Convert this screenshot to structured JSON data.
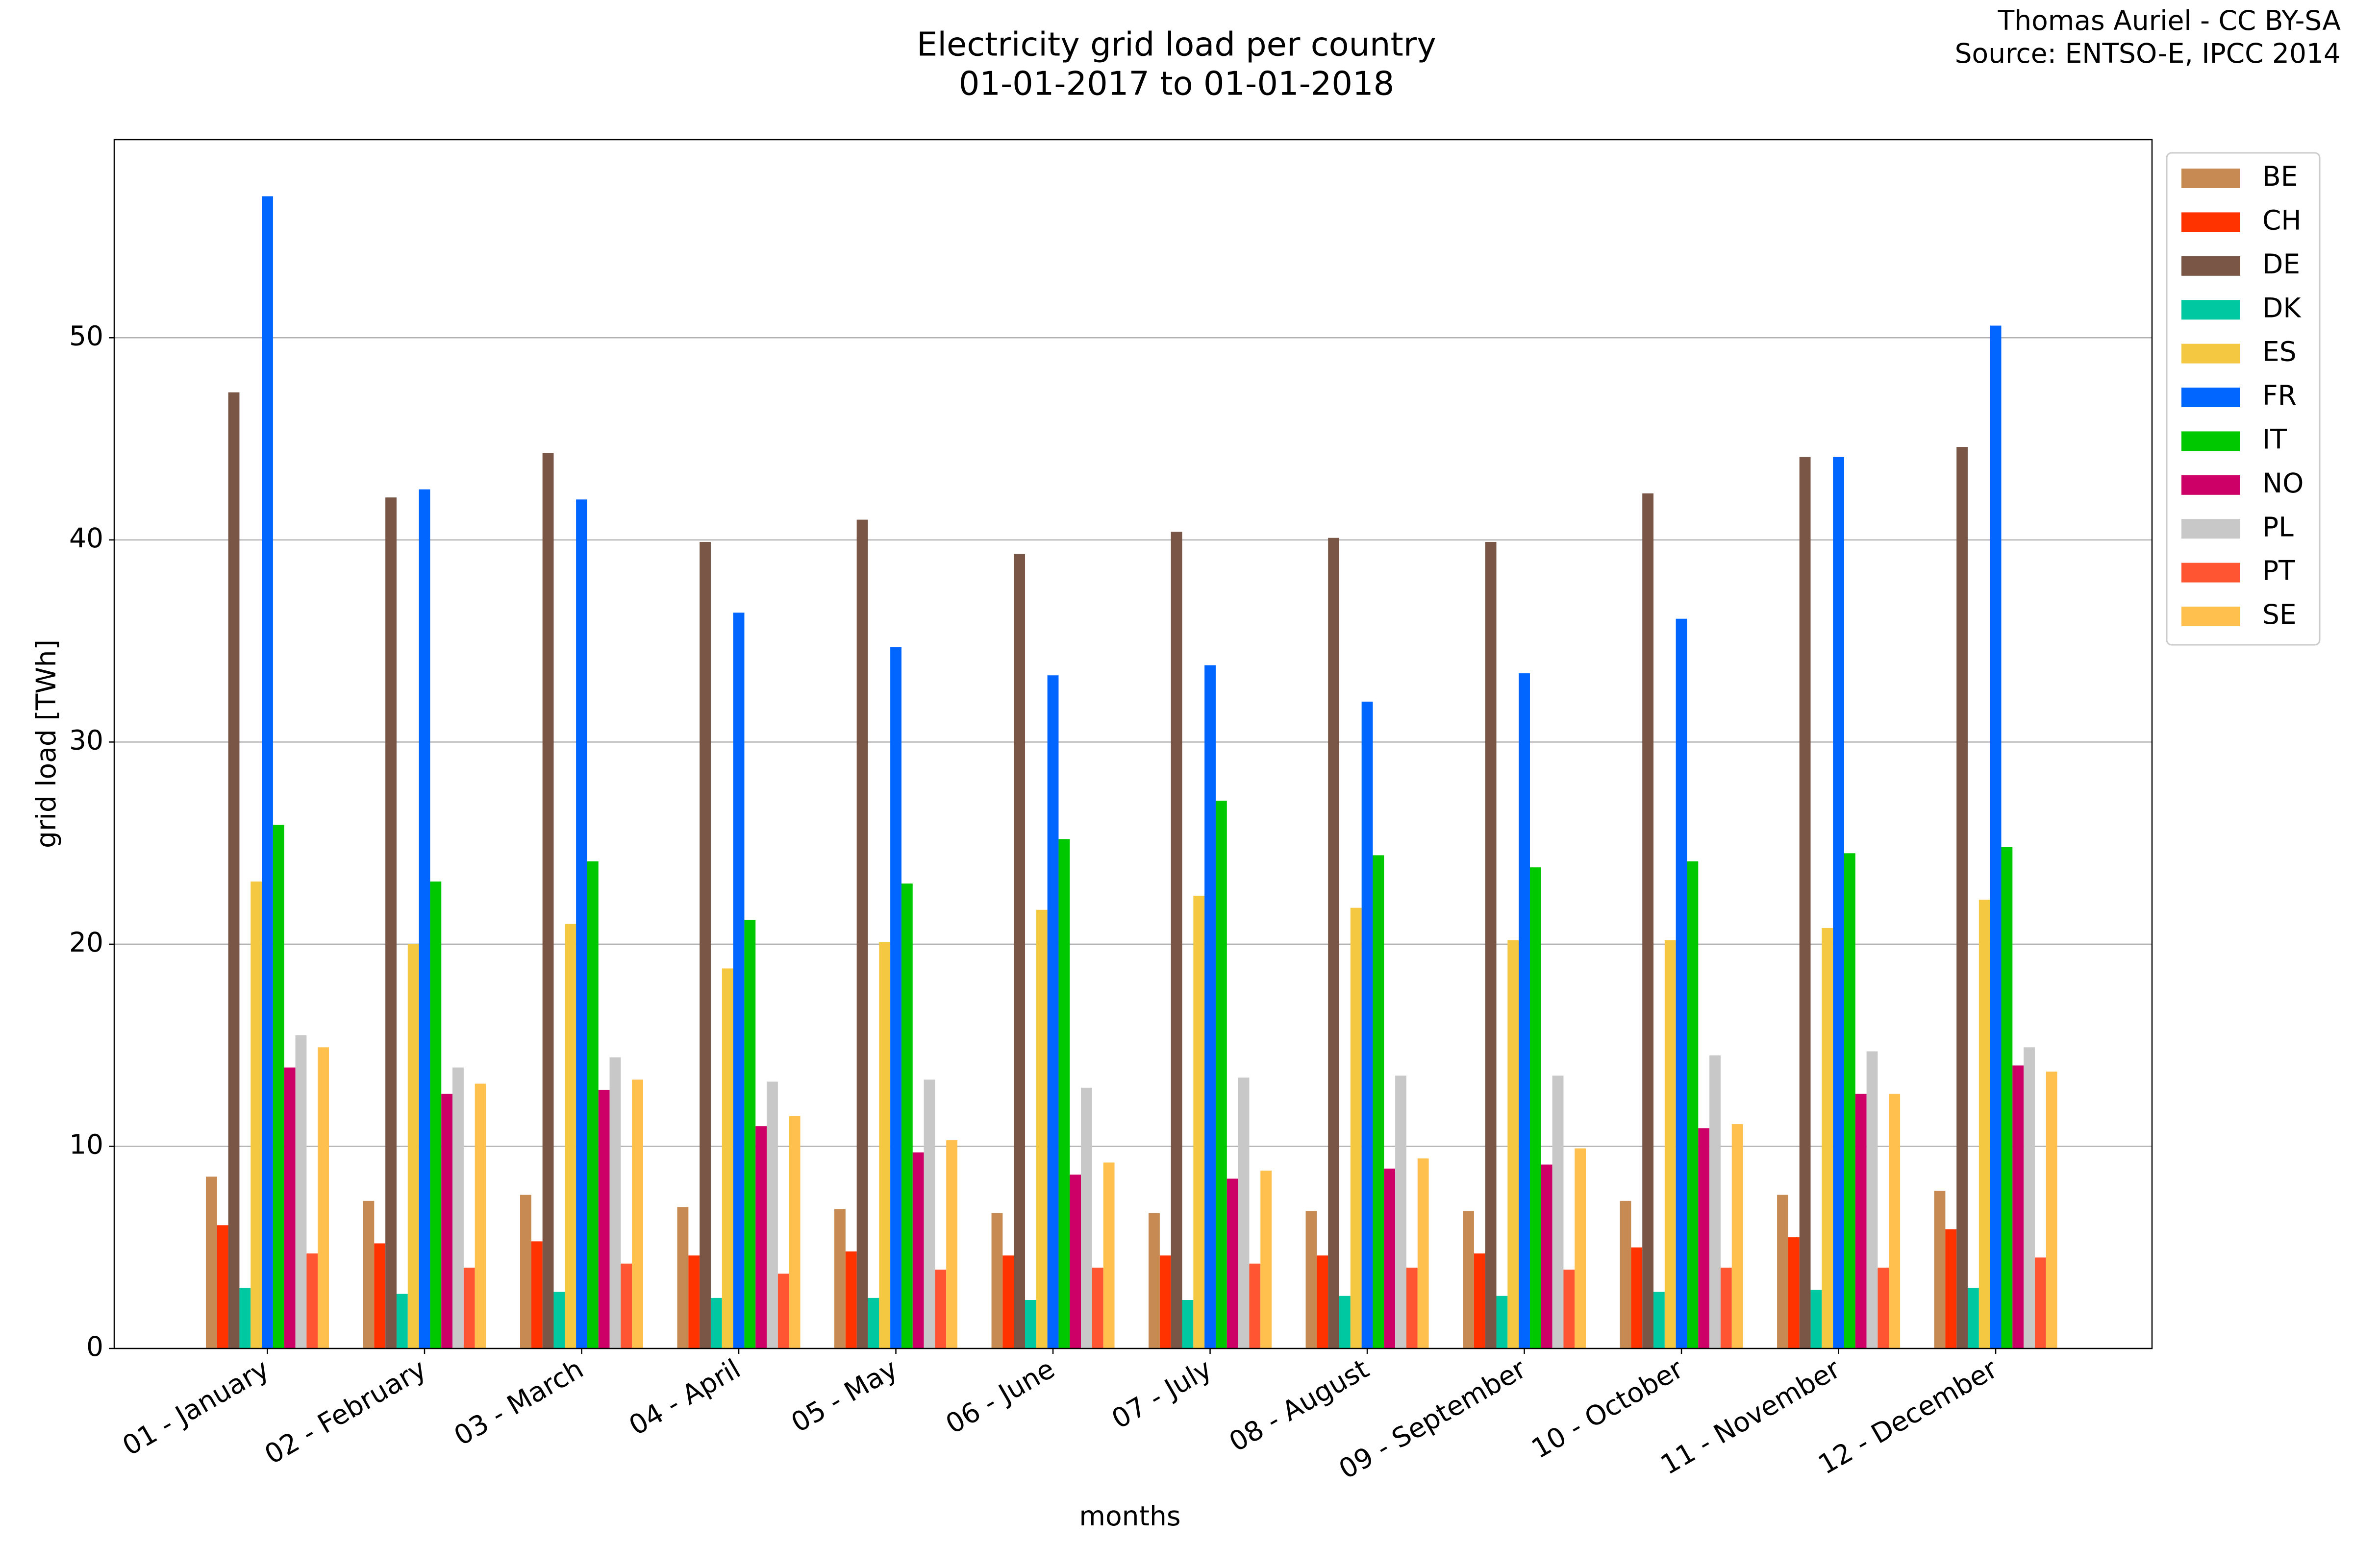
{
  "chart_data": {
    "type": "bar",
    "title": "Electricity grid load per country",
    "subtitle": "01-01-2017 to 01-01-2018",
    "credit": "Thomas Auriel - CC BY-SA",
    "source": "Source: ENTSO-E, IPCC 2014",
    "xlabel": "months",
    "ylabel": "grid load [TWh]",
    "categories": [
      "01 - January",
      "02 - February",
      "03 - March",
      "04 - April",
      "05 - May",
      "06 - June",
      "07 - July",
      "08 - August",
      "09 - September",
      "10 - October",
      "11 - November",
      "12 - December"
    ],
    "series": [
      {
        "name": "BE",
        "color": "#c68a52",
        "values": [
          8.5,
          7.3,
          7.6,
          7.0,
          6.9,
          6.7,
          6.7,
          6.8,
          6.8,
          7.3,
          7.6,
          7.8
        ]
      },
      {
        "name": "CH",
        "color": "#ff3300",
        "values": [
          6.1,
          5.2,
          5.3,
          4.6,
          4.8,
          4.6,
          4.6,
          4.6,
          4.7,
          5.0,
          5.5,
          5.9
        ]
      },
      {
        "name": "DE",
        "color": "#7a5646",
        "values": [
          47.3,
          42.1,
          44.3,
          39.9,
          41.0,
          39.3,
          40.4,
          40.1,
          39.9,
          42.3,
          44.1,
          44.6
        ]
      },
      {
        "name": "DK",
        "color": "#00c8a0",
        "values": [
          3.0,
          2.7,
          2.8,
          2.5,
          2.5,
          2.4,
          2.4,
          2.6,
          2.6,
          2.8,
          2.9,
          3.0
        ]
      },
      {
        "name": "ES",
        "color": "#f5c842",
        "values": [
          23.1,
          20.0,
          21.0,
          18.8,
          20.1,
          21.7,
          22.4,
          21.8,
          20.2,
          20.2,
          20.8,
          22.2
        ]
      },
      {
        "name": "FR",
        "color": "#0066ff",
        "values": [
          57.0,
          42.5,
          42.0,
          36.4,
          34.7,
          33.3,
          33.8,
          32.0,
          33.4,
          36.1,
          44.1,
          50.6
        ]
      },
      {
        "name": "IT",
        "color": "#00c800",
        "values": [
          25.9,
          23.1,
          24.1,
          21.2,
          23.0,
          25.2,
          27.1,
          24.4,
          23.8,
          24.1,
          24.5,
          24.8
        ]
      },
      {
        "name": "NO",
        "color": "#cc0066",
        "values": [
          13.9,
          12.6,
          12.8,
          11.0,
          9.7,
          8.6,
          8.4,
          8.9,
          9.1,
          10.9,
          12.6,
          14.0
        ]
      },
      {
        "name": "PL",
        "color": "#c8c8c8",
        "values": [
          15.5,
          13.9,
          14.4,
          13.2,
          13.3,
          12.9,
          13.4,
          13.5,
          13.5,
          14.5,
          14.7,
          14.9
        ]
      },
      {
        "name": "PT",
        "color": "#ff5533",
        "values": [
          4.7,
          4.0,
          4.2,
          3.7,
          3.9,
          4.0,
          4.2,
          4.0,
          3.9,
          4.0,
          4.0,
          4.5
        ]
      },
      {
        "name": "SE",
        "color": "#ffc04d",
        "values": [
          14.9,
          13.1,
          13.3,
          11.5,
          10.3,
          9.2,
          8.8,
          9.4,
          9.9,
          11.1,
          12.6,
          13.7
        ]
      }
    ],
    "ylim": [
      0,
      59.8
    ],
    "yticks": [
      0,
      10,
      20,
      30,
      40,
      50
    ],
    "grid": true,
    "legend": "outside-right"
  }
}
